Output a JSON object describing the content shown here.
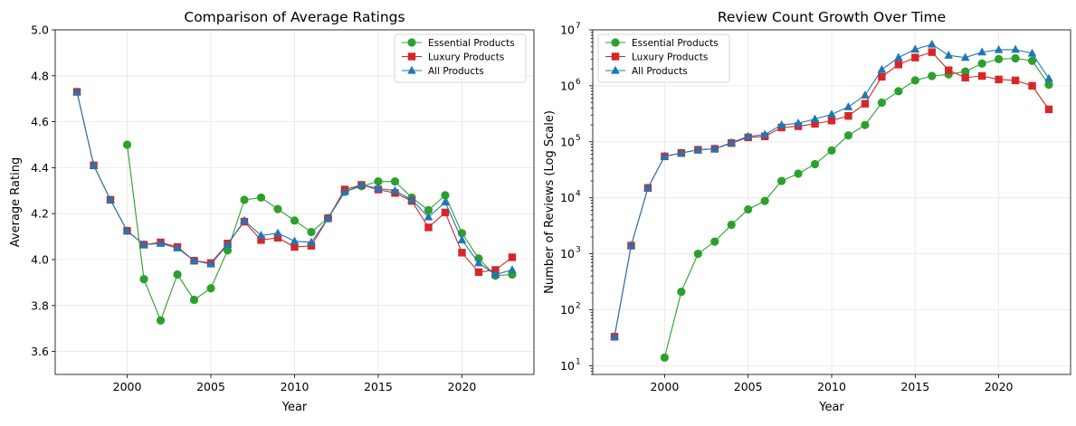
{
  "chart_data": [
    {
      "type": "line",
      "title": "Comparison of Average Ratings",
      "xlabel": "Year",
      "ylabel": "Average Rating",
      "xlim": [
        1995.7,
        2024.3
      ],
      "ylim": [
        3.5,
        5.0
      ],
      "xticks": [
        2000,
        2005,
        2010,
        2015,
        2020
      ],
      "xtick_labels": [
        "2000",
        "2005",
        "2010",
        "2015",
        "2020"
      ],
      "yticks": [
        3.6,
        3.8,
        4.0,
        4.2,
        4.4,
        4.6,
        4.8,
        5.0
      ],
      "ytick_labels": [
        "3.6",
        "3.8",
        "4.0",
        "4.2",
        "4.4",
        "4.6",
        "4.8",
        "5.0"
      ],
      "grid": true,
      "legend_position": "top-right",
      "series": [
        {
          "name": "Essential Products",
          "color": "#2ca02c",
          "marker": "circle",
          "x": [
            2000,
            2001,
            2002,
            2003,
            2004,
            2005,
            2006,
            2007,
            2008,
            2009,
            2010,
            2011,
            2012,
            2013,
            2014,
            2015,
            2016,
            2017,
            2018,
            2019,
            2020,
            2021,
            2022,
            2023
          ],
          "y": [
            4.5,
            3.915,
            3.735,
            3.935,
            3.825,
            3.875,
            4.04,
            4.26,
            4.27,
            4.22,
            4.17,
            4.12,
            4.18,
            4.295,
            4.32,
            4.34,
            4.34,
            4.27,
            4.215,
            4.28,
            4.115,
            4.005,
            3.93,
            3.935
          ]
        },
        {
          "name": "Luxury Products",
          "color": "#d62728",
          "marker": "square",
          "x": [
            1997,
            1998,
            1999,
            2000,
            2001,
            2002,
            2003,
            2004,
            2005,
            2006,
            2007,
            2008,
            2009,
            2010,
            2011,
            2012,
            2013,
            2014,
            2015,
            2016,
            2017,
            2018,
            2019,
            2020,
            2021,
            2022,
            2023
          ],
          "y": [
            4.73,
            4.41,
            4.26,
            4.125,
            4.065,
            4.075,
            4.055,
            3.995,
            3.985,
            4.07,
            4.165,
            4.085,
            4.095,
            4.055,
            4.06,
            4.18,
            4.305,
            4.325,
            4.305,
            4.29,
            4.255,
            4.14,
            4.205,
            4.03,
            3.945,
            3.955,
            4.01
          ]
        },
        {
          "name": "All Products",
          "color": "#1f77b4",
          "marker": "triangle",
          "x": [
            1997,
            1998,
            1999,
            2000,
            2001,
            2002,
            2003,
            2004,
            2005,
            2006,
            2007,
            2008,
            2009,
            2010,
            2011,
            2012,
            2013,
            2014,
            2015,
            2016,
            2017,
            2018,
            2019,
            2020,
            2021,
            2022,
            2023
          ],
          "y": [
            4.73,
            4.41,
            4.26,
            4.125,
            4.065,
            4.07,
            4.05,
            3.995,
            3.98,
            4.065,
            4.17,
            4.105,
            4.115,
            4.08,
            4.075,
            4.18,
            4.295,
            4.325,
            4.31,
            4.3,
            4.26,
            4.185,
            4.25,
            4.085,
            3.985,
            3.935,
            3.955
          ]
        }
      ]
    },
    {
      "type": "line",
      "title": "Review Count Growth Over Time",
      "xlabel": "Year",
      "ylabel": "Number of Reviews (Log Scale)",
      "xlim": [
        1995.7,
        2024.3
      ],
      "ylim": [
        7,
        10000000
      ],
      "yscale": "log",
      "xticks": [
        2000,
        2005,
        2010,
        2015,
        2020
      ],
      "xtick_labels": [
        "2000",
        "2005",
        "2010",
        "2015",
        "2020"
      ],
      "yticks": [
        10,
        100,
        1000,
        10000,
        100000,
        1000000,
        10000000
      ],
      "ytick_bases": [
        "10",
        "10",
        "10",
        "10",
        "10",
        "10",
        "10"
      ],
      "ytick_exponents": [
        "1",
        "2",
        "3",
        "4",
        "5",
        "6",
        "7"
      ],
      "grid": true,
      "legend_position": "top-left",
      "series": [
        {
          "name": "Essential Products",
          "color": "#2ca02c",
          "marker": "circle",
          "x": [
            2000,
            2001,
            2002,
            2003,
            2004,
            2005,
            2006,
            2007,
            2008,
            2009,
            2010,
            2011,
            2012,
            2013,
            2014,
            2015,
            2016,
            2017,
            2018,
            2019,
            2020,
            2021,
            2022,
            2023
          ],
          "y": [
            14,
            210,
            1000,
            1650,
            3300,
            6200,
            8800,
            20000,
            27000,
            40000,
            70000,
            130000,
            200000,
            500000,
            800000,
            1250000,
            1500000,
            1600000,
            1800000,
            2500000,
            3000000,
            3100000,
            2800000,
            1050000
          ]
        },
        {
          "name": "Luxury Products",
          "color": "#d62728",
          "marker": "square",
          "x": [
            1997,
            1998,
            1999,
            2000,
            2001,
            2002,
            2003,
            2004,
            2005,
            2006,
            2007,
            2008,
            2009,
            2010,
            2011,
            2012,
            2013,
            2014,
            2015,
            2016,
            2017,
            2018,
            2019,
            2020,
            2021,
            2022,
            2023
          ],
          "y": [
            33,
            1400,
            15000,
            55000,
            63000,
            72000,
            75000,
            95000,
            120000,
            125000,
            180000,
            190000,
            210000,
            240000,
            290000,
            480000,
            1450000,
            2400000,
            3200000,
            4000000,
            1900000,
            1400000,
            1500000,
            1300000,
            1250000,
            1000000,
            380000
          ]
        },
        {
          "name": "All Products",
          "color": "#1f77b4",
          "marker": "triangle",
          "x": [
            1997,
            1998,
            1999,
            2000,
            2001,
            2002,
            2003,
            2004,
            2005,
            2006,
            2007,
            2008,
            2009,
            2010,
            2011,
            2012,
            2013,
            2014,
            2015,
            2016,
            2017,
            2018,
            2019,
            2020,
            2021,
            2022,
            2023
          ],
          "y": [
            33,
            1400,
            15000,
            55000,
            63000,
            72000,
            75000,
            97000,
            125000,
            135000,
            200000,
            215000,
            255000,
            310000,
            420000,
            680000,
            1950000,
            3200000,
            4500000,
            5500000,
            3500000,
            3200000,
            4000000,
            4400000,
            4450000,
            3800000,
            1350000
          ]
        }
      ]
    }
  ]
}
